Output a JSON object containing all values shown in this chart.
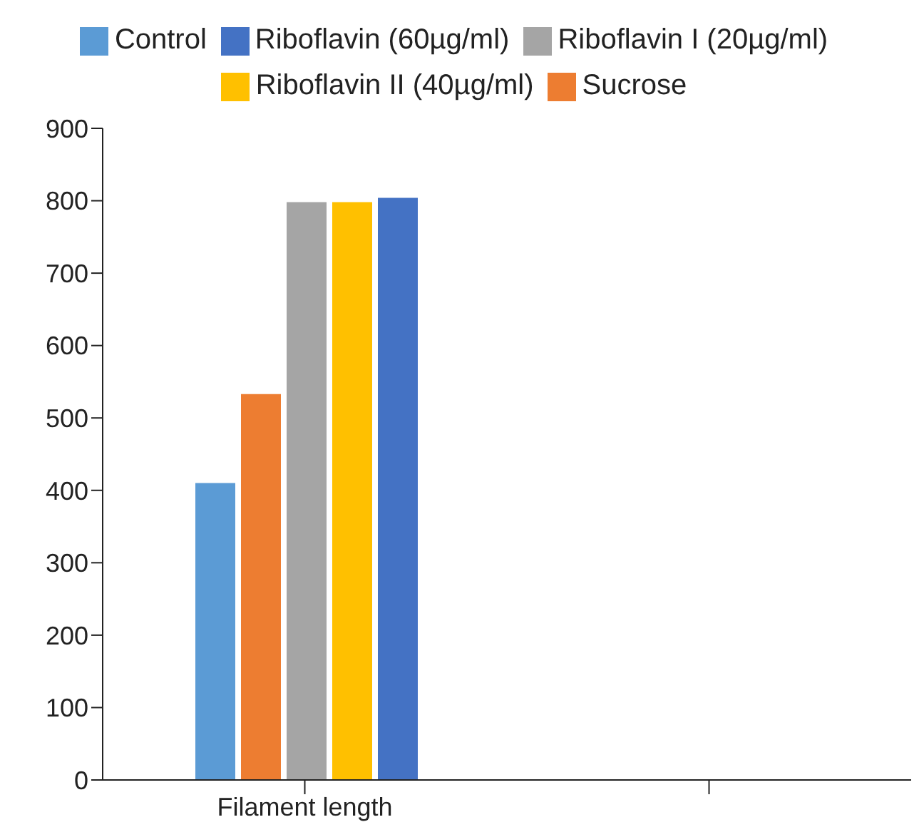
{
  "chart_data": {
    "type": "bar",
    "categories": [
      "Filament length",
      null
    ],
    "series": [
      {
        "name": "Control",
        "color": "#5b9bd5",
        "values": [
          410,
          null
        ]
      },
      {
        "name": "Sucrose",
        "color": "#ed7d31",
        "values": [
          533,
          null
        ]
      },
      {
        "name": "Riboflavin I (20µg/ml)",
        "color": "#a5a5a5",
        "values": [
          798,
          null
        ]
      },
      {
        "name": "Riboflavin II (40µg/ml)",
        "color": "#ffc000",
        "values": [
          798,
          null
        ]
      },
      {
        "name": "Riboflavin (60µg/ml)",
        "color": "#4472c4",
        "values": [
          804,
          null
        ]
      }
    ],
    "ylim": [
      0,
      900
    ],
    "yticks": [
      0,
      100,
      200,
      300,
      400,
      500,
      600,
      700,
      800,
      900
    ],
    "grid": false,
    "legend": "top"
  }
}
